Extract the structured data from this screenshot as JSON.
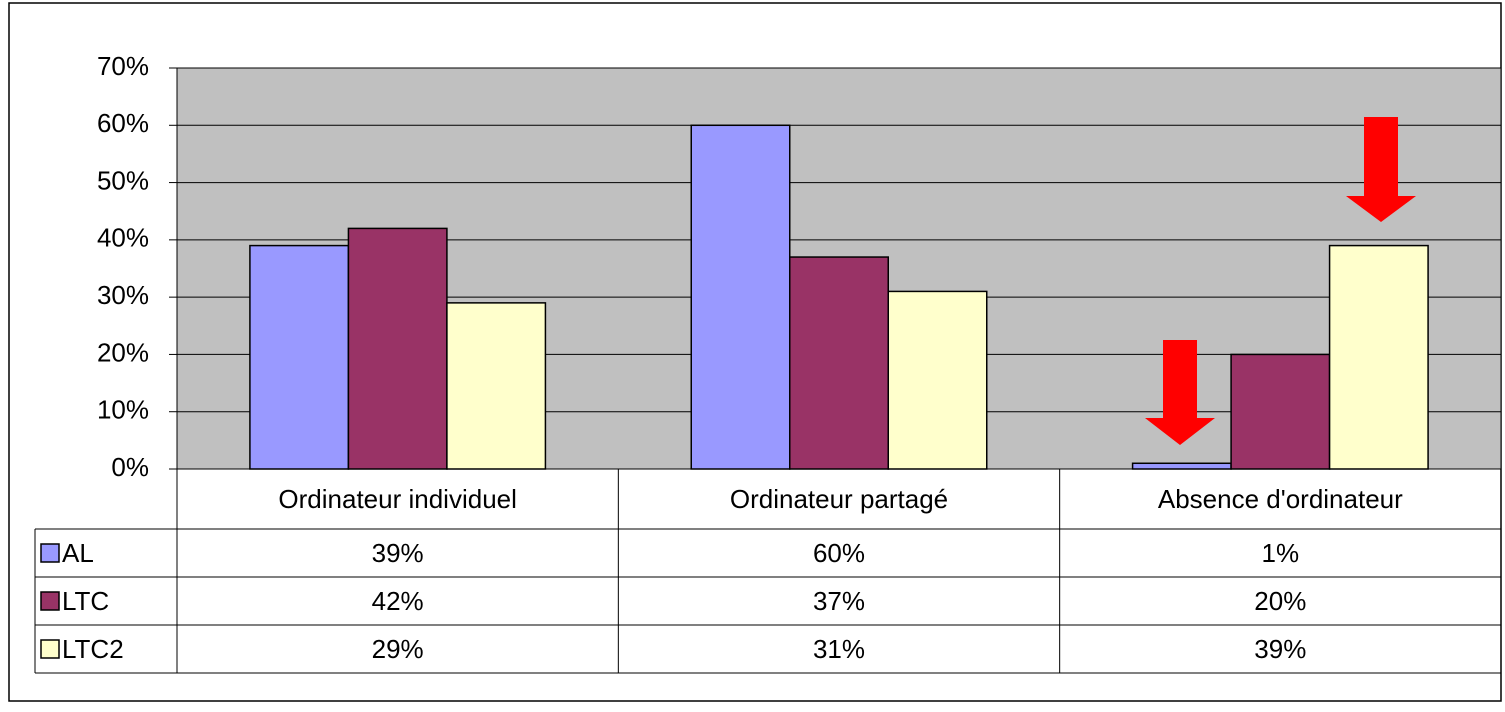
{
  "chart_data": {
    "type": "bar",
    "categories": [
      "Ordinateur individuel",
      "Ordinateur partagé",
      "Absence d'ordinateur"
    ],
    "series": [
      {
        "name": "AL",
        "color": "#9999ff",
        "values": [
          39,
          60,
          1
        ],
        "value_labels": [
          "39%",
          "60%",
          "1%"
        ]
      },
      {
        "name": "LTC",
        "color": "#993366",
        "values": [
          42,
          37,
          20
        ],
        "value_labels": [
          "42%",
          "37%",
          "20%"
        ]
      },
      {
        "name": "LTC2",
        "color": "#ffffcc",
        "values": [
          29,
          31,
          39
        ],
        "value_labels": [
          "29%",
          "31%",
          "39%"
        ]
      }
    ],
    "ylim": [
      0,
      70
    ],
    "yticks": [
      {
        "value": 0,
        "label": "0%"
      },
      {
        "value": 10,
        "label": "10%"
      },
      {
        "value": 20,
        "label": "20%"
      },
      {
        "value": 30,
        "label": "30%"
      },
      {
        "value": 40,
        "label": "40%"
      },
      {
        "value": 50,
        "label": "50%"
      },
      {
        "value": 60,
        "label": "60%"
      },
      {
        "value": 70,
        "label": "70%"
      }
    ],
    "grid": true,
    "plot_background": "#c0c0c0"
  }
}
